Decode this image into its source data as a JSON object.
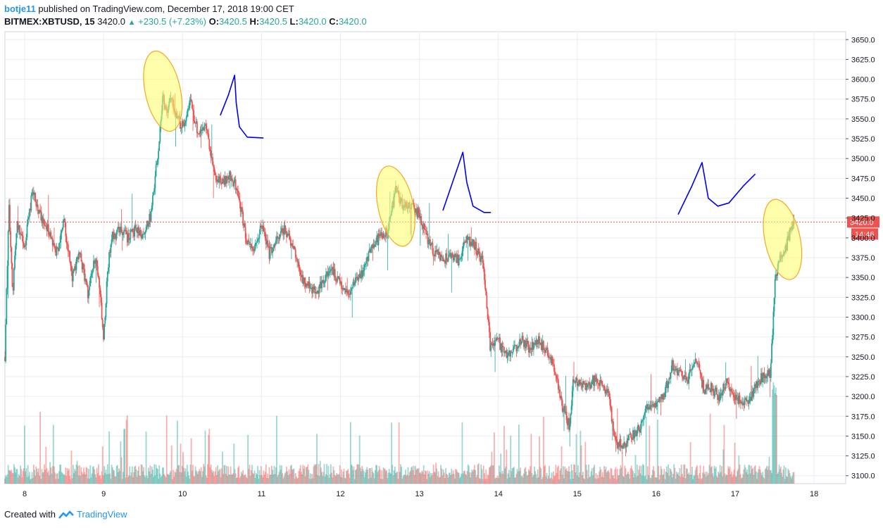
{
  "header": {
    "author": "botje11",
    "published_text": "published on TradingView.com, December 17, 2018 19:00 CET",
    "symbol": "BITMEX:XBTUSD, 15",
    "last": "3420.0",
    "change": "+230.5 (+7.23%)",
    "o_label": "O:",
    "o_value": "3420.5",
    "h_label": "H:",
    "h_value": "3420.5",
    "l_label": "L:",
    "l_value": "3420.0",
    "c_label": "C:",
    "c_value": "3420.0"
  },
  "footer": {
    "created_with": "Created with",
    "brand": "TradingView"
  },
  "colors": {
    "up": "#26a69a",
    "down": "#ef5350",
    "grid": "#e9edf3",
    "price_line": "#ef5350",
    "highlight_fill": "#ffff66",
    "highlight_stroke": "#f5a623",
    "annotation": "#0000ee"
  },
  "chart_data": {
    "type": "candlestick",
    "symbol": "BITMEX:XBTUSD",
    "interval": "15",
    "x_tick_labels": [
      "8",
      "9",
      "10",
      "11",
      "12",
      "13",
      "14",
      "15",
      "16",
      "17",
      "18"
    ],
    "y_tick_labels": [
      "3100.0",
      "3125.0",
      "3150.0",
      "3175.0",
      "3200.0",
      "3225.0",
      "3250.0",
      "3275.0",
      "3300.0",
      "3325.0",
      "3350.0",
      "3375.0",
      "3400.0",
      "3425.0",
      "3450.0",
      "3475.0",
      "3500.0",
      "3525.0",
      "3550.0",
      "3575.0",
      "3600.0",
      "3625.0",
      "3650.0"
    ],
    "ylim": [
      3090,
      3660
    ],
    "xlim": [
      7.75,
      18.4
    ],
    "price_marker": "3420.0",
    "countdown": "14:46",
    "grid": true,
    "price_path": [
      [
        7.75,
        3250
      ],
      [
        7.8,
        3440
      ],
      [
        7.85,
        3330
      ],
      [
        7.9,
        3420
      ],
      [
        8.0,
        3390
      ],
      [
        8.1,
        3460
      ],
      [
        8.2,
        3430
      ],
      [
        8.3,
        3410
      ],
      [
        8.4,
        3380
      ],
      [
        8.5,
        3420
      ],
      [
        8.6,
        3350
      ],
      [
        8.7,
        3380
      ],
      [
        8.8,
        3330
      ],
      [
        8.9,
        3380
      ],
      [
        8.95,
        3340
      ],
      [
        9.0,
        3270
      ],
      [
        9.05,
        3360
      ],
      [
        9.1,
        3400
      ],
      [
        9.2,
        3410
      ],
      [
        9.3,
        3400
      ],
      [
        9.4,
        3410
      ],
      [
        9.5,
        3400
      ],
      [
        9.6,
        3430
      ],
      [
        9.7,
        3520
      ],
      [
        9.75,
        3580
      ],
      [
        9.8,
        3560
      ],
      [
        9.85,
        3575
      ],
      [
        9.9,
        3560
      ],
      [
        10.0,
        3540
      ],
      [
        10.1,
        3570
      ],
      [
        10.2,
        3530
      ],
      [
        10.3,
        3540
      ],
      [
        10.4,
        3480
      ],
      [
        10.5,
        3470
      ],
      [
        10.6,
        3480
      ],
      [
        10.7,
        3460
      ],
      [
        10.8,
        3400
      ],
      [
        10.9,
        3380
      ],
      [
        11.0,
        3420
      ],
      [
        11.1,
        3380
      ],
      [
        11.2,
        3400
      ],
      [
        11.3,
        3410
      ],
      [
        11.4,
        3390
      ],
      [
        11.5,
        3350
      ],
      [
        11.6,
        3340
      ],
      [
        11.7,
        3330
      ],
      [
        11.8,
        3350
      ],
      [
        11.9,
        3360
      ],
      [
        12.0,
        3340
      ],
      [
        12.1,
        3330
      ],
      [
        12.2,
        3350
      ],
      [
        12.3,
        3360
      ],
      [
        12.4,
        3390
      ],
      [
        12.5,
        3400
      ],
      [
        12.6,
        3410
      ],
      [
        12.7,
        3460
      ],
      [
        12.8,
        3440
      ],
      [
        12.9,
        3440
      ],
      [
        13.0,
        3430
      ],
      [
        13.1,
        3400
      ],
      [
        13.2,
        3380
      ],
      [
        13.3,
        3370
      ],
      [
        13.4,
        3380
      ],
      [
        13.5,
        3370
      ],
      [
        13.6,
        3400
      ],
      [
        13.7,
        3390
      ],
      [
        13.8,
        3370
      ],
      [
        13.85,
        3320
      ],
      [
        13.9,
        3260
      ],
      [
        14.0,
        3270
      ],
      [
        14.1,
        3250
      ],
      [
        14.2,
        3260
      ],
      [
        14.3,
        3270
      ],
      [
        14.4,
        3260
      ],
      [
        14.5,
        3270
      ],
      [
        14.6,
        3260
      ],
      [
        14.7,
        3240
      ],
      [
        14.8,
        3190
      ],
      [
        14.85,
        3180
      ],
      [
        14.9,
        3160
      ],
      [
        14.95,
        3220
      ],
      [
        15.0,
        3220
      ],
      [
        15.1,
        3210
      ],
      [
        15.2,
        3220
      ],
      [
        15.3,
        3220
      ],
      [
        15.4,
        3200
      ],
      [
        15.45,
        3160
      ],
      [
        15.5,
        3140
      ],
      [
        15.6,
        3140
      ],
      [
        15.7,
        3150
      ],
      [
        15.8,
        3160
      ],
      [
        15.9,
        3190
      ],
      [
        16.0,
        3190
      ],
      [
        16.1,
        3200
      ],
      [
        16.2,
        3240
      ],
      [
        16.3,
        3230
      ],
      [
        16.4,
        3220
      ],
      [
        16.5,
        3250
      ],
      [
        16.6,
        3210
      ],
      [
        16.7,
        3210
      ],
      [
        16.8,
        3200
      ],
      [
        16.9,
        3220
      ],
      [
        17.0,
        3200
      ],
      [
        17.1,
        3190
      ],
      [
        17.2,
        3200
      ],
      [
        17.3,
        3220
      ],
      [
        17.4,
        3230
      ],
      [
        17.45,
        3230
      ],
      [
        17.5,
        3340
      ],
      [
        17.55,
        3370
      ],
      [
        17.6,
        3380
      ],
      [
        17.65,
        3390
      ],
      [
        17.7,
        3410
      ],
      [
        17.75,
        3420
      ]
    ]
  },
  "annotations": {
    "ellipses": [
      {
        "x": 9.75,
        "price": 3585
      },
      {
        "x": 12.7,
        "price": 3440
      },
      {
        "x": 17.6,
        "price": 3398
      }
    ]
  }
}
